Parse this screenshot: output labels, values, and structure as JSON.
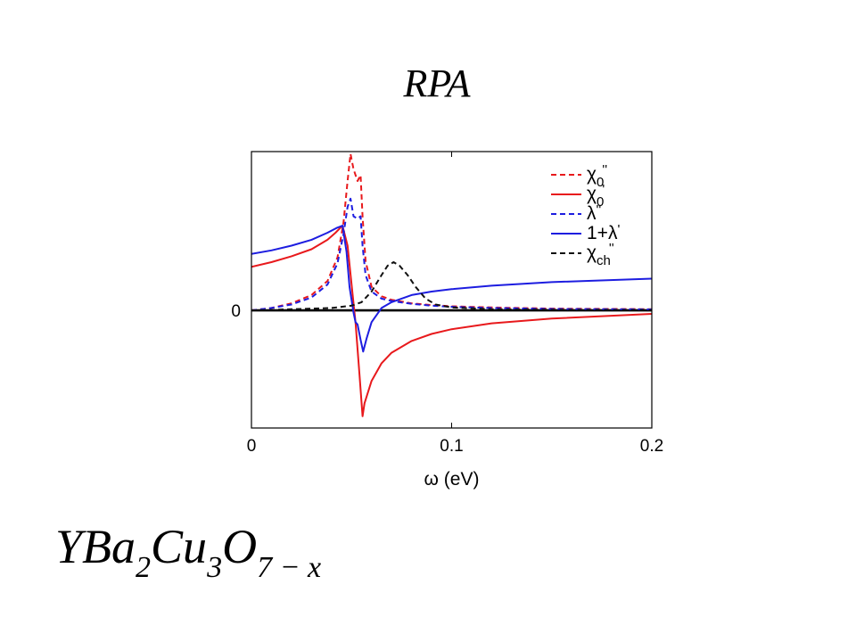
{
  "slide": {
    "title": "RPA",
    "formula": {
      "parts": [
        {
          "text": "YBa",
          "sub": false
        },
        {
          "text": "2",
          "sub": true
        },
        {
          "text": "Cu",
          "sub": false
        },
        {
          "text": "3",
          "sub": true
        },
        {
          "text": "O",
          "sub": false
        },
        {
          "text": "7 − x",
          "sub": true
        }
      ]
    }
  },
  "chart_data": {
    "type": "line",
    "xlabel": "ω (eV)",
    "ylabel": "",
    "xlim": [
      0,
      0.2
    ],
    "ylim": [
      -1.0,
      1.35
    ],
    "x_ticks": [
      {
        "value": 0,
        "label": "0"
      },
      {
        "value": 0.1,
        "label": "0.1"
      },
      {
        "value": 0.2,
        "label": "0.2"
      }
    ],
    "y_ticks": [
      {
        "value": 0,
        "label": "0"
      }
    ],
    "zero_line": true,
    "legend": {
      "position": "top-right",
      "entries": [
        {
          "symbol": "χ",
          "sup": "''",
          "sub": "0"
        },
        {
          "symbol": "χ",
          "sup": "'",
          "sub": "0"
        },
        {
          "symbol": "λ",
          "sup": "''",
          "sub": ""
        },
        {
          "symbol": "1+λ",
          "sup": "'",
          "sub": ""
        },
        {
          "symbol": "χ",
          "sup": "''",
          "sub": "ch"
        }
      ]
    },
    "series": [
      {
        "name": "χ''0",
        "color": "#e8191c",
        "dash": true,
        "points": [
          [
            0,
            0
          ],
          [
            0.01,
            0.02
          ],
          [
            0.02,
            0.06
          ],
          [
            0.03,
            0.13
          ],
          [
            0.038,
            0.25
          ],
          [
            0.043,
            0.45
          ],
          [
            0.046,
            0.75
          ],
          [
            0.048,
            1.1
          ],
          [
            0.0495,
            1.33
          ],
          [
            0.051,
            1.2
          ],
          [
            0.053,
            1.1
          ],
          [
            0.0545,
            1.15
          ],
          [
            0.0555,
            0.8
          ],
          [
            0.057,
            0.42
          ],
          [
            0.06,
            0.2
          ],
          [
            0.065,
            0.12
          ],
          [
            0.07,
            0.09
          ],
          [
            0.08,
            0.06
          ],
          [
            0.09,
            0.045
          ],
          [
            0.1,
            0.035
          ],
          [
            0.12,
            0.025
          ],
          [
            0.15,
            0.015
          ],
          [
            0.2,
            0.01
          ]
        ]
      },
      {
        "name": "χ'0",
        "color": "#e8191c",
        "dash": false,
        "points": [
          [
            0,
            0.37
          ],
          [
            0.01,
            0.41
          ],
          [
            0.02,
            0.46
          ],
          [
            0.03,
            0.52
          ],
          [
            0.038,
            0.6
          ],
          [
            0.042,
            0.66
          ],
          [
            0.0455,
            0.72
          ],
          [
            0.048,
            0.55
          ],
          [
            0.05,
            0.22
          ],
          [
            0.052,
            -0.1
          ],
          [
            0.054,
            -0.55
          ],
          [
            0.0555,
            -0.9
          ],
          [
            0.0565,
            -0.79
          ],
          [
            0.06,
            -0.6
          ],
          [
            0.065,
            -0.45
          ],
          [
            0.07,
            -0.36
          ],
          [
            0.08,
            -0.26
          ],
          [
            0.09,
            -0.2
          ],
          [
            0.1,
            -0.16
          ],
          [
            0.12,
            -0.11
          ],
          [
            0.15,
            -0.07
          ],
          [
            0.2,
            -0.03
          ]
        ]
      },
      {
        "name": "λ''",
        "color": "#1d1de0",
        "dash": true,
        "points": [
          [
            0,
            0
          ],
          [
            0.01,
            0.02
          ],
          [
            0.02,
            0.05
          ],
          [
            0.03,
            0.11
          ],
          [
            0.038,
            0.22
          ],
          [
            0.043,
            0.4
          ],
          [
            0.046,
            0.65
          ],
          [
            0.048,
            0.88
          ],
          [
            0.0495,
            0.95
          ],
          [
            0.051,
            0.8
          ],
          [
            0.053,
            0.78
          ],
          [
            0.0545,
            0.8
          ],
          [
            0.0555,
            0.55
          ],
          [
            0.057,
            0.3
          ],
          [
            0.06,
            0.16
          ],
          [
            0.065,
            0.1
          ],
          [
            0.07,
            0.08
          ],
          [
            0.08,
            0.055
          ],
          [
            0.09,
            0.04
          ],
          [
            0.1,
            0.03
          ],
          [
            0.12,
            0.02
          ],
          [
            0.15,
            0.012
          ],
          [
            0.2,
            0.008
          ]
        ]
      },
      {
        "name": "1+λ'",
        "color": "#1d1de0",
        "dash": false,
        "points": [
          [
            0,
            0.48
          ],
          [
            0.01,
            0.51
          ],
          [
            0.02,
            0.55
          ],
          [
            0.03,
            0.6
          ],
          [
            0.038,
            0.66
          ],
          [
            0.0425,
            0.7
          ],
          [
            0.0455,
            0.72
          ],
          [
            0.0475,
            0.5
          ],
          [
            0.049,
            0.2
          ],
          [
            0.051,
            -0.02
          ],
          [
            0.052,
            -0.1
          ],
          [
            0.053,
            -0.12
          ],
          [
            0.0545,
            -0.25
          ],
          [
            0.0558,
            -0.35
          ],
          [
            0.0575,
            -0.24
          ],
          [
            0.06,
            -0.1
          ],
          [
            0.065,
            0.02
          ],
          [
            0.07,
            0.07
          ],
          [
            0.08,
            0.13
          ],
          [
            0.09,
            0.16
          ],
          [
            0.1,
            0.18
          ],
          [
            0.12,
            0.21
          ],
          [
            0.15,
            0.24
          ],
          [
            0.2,
            0.27
          ]
        ]
      },
      {
        "name": "χ''ch",
        "color": "#111111",
        "dash": true,
        "points": [
          [
            0,
            0
          ],
          [
            0.02,
            0.01
          ],
          [
            0.04,
            0.02
          ],
          [
            0.05,
            0.04
          ],
          [
            0.055,
            0.07
          ],
          [
            0.06,
            0.16
          ],
          [
            0.065,
            0.3
          ],
          [
            0.068,
            0.38
          ],
          [
            0.071,
            0.41
          ],
          [
            0.074,
            0.38
          ],
          [
            0.078,
            0.3
          ],
          [
            0.082,
            0.2
          ],
          [
            0.087,
            0.1
          ],
          [
            0.092,
            0.05
          ],
          [
            0.1,
            0.025
          ],
          [
            0.12,
            0.01
          ],
          [
            0.15,
            0.005
          ],
          [
            0.2,
            0.003
          ]
        ]
      }
    ]
  }
}
